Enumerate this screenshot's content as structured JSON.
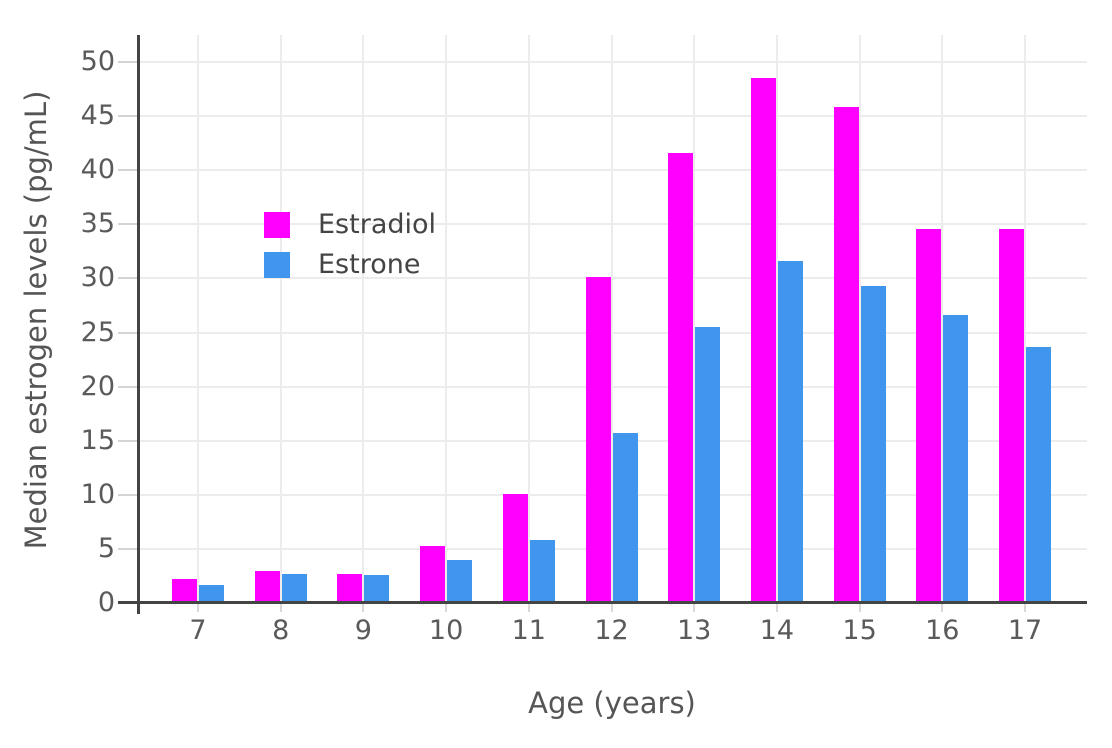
{
  "chart_data": {
    "type": "bar",
    "title": "",
    "xlabel": "Age (years)",
    "ylabel": "Median estrogen levels (pg/mL)",
    "categories": [
      "7",
      "8",
      "9",
      "10",
      "11",
      "12",
      "13",
      "14",
      "15",
      "16",
      "17"
    ],
    "series": [
      {
        "name": "Estradiol",
        "color": "#FF00FF",
        "values": [
          2.2,
          3.0,
          2.7,
          5.3,
          10.1,
          30.1,
          41.6,
          48.5,
          45.8,
          34.6,
          34.6
        ]
      },
      {
        "name": "Estrone",
        "color": "#4095EC",
        "values": [
          1.7,
          2.7,
          2.6,
          4.0,
          5.8,
          15.7,
          25.5,
          31.6,
          29.3,
          26.6,
          23.7
        ]
      }
    ],
    "yticks": [
      0,
      5,
      10,
      15,
      20,
      25,
      30,
      35,
      40,
      45,
      50
    ],
    "ylim": [
      0,
      52.5
    ],
    "grid": true,
    "legend_position": "inside-top-left",
    "bar_mode": "grouped"
  },
  "legend": {
    "items": [
      {
        "label": "Estradiol",
        "color": "#FF00FF"
      },
      {
        "label": "Estrone",
        "color": "#4095EC"
      }
    ]
  },
  "axes": {
    "x_title": "Age (years)",
    "y_title": "Median estrogen levels (pg/mL)"
  },
  "colors": {
    "estradiol": "#FF00FF",
    "estrone": "#4095EC",
    "gridline": "#ececec",
    "axis_line": "#444444",
    "tick_label": "#5a5a5a",
    "axis_title": "#555555",
    "background": "#ffffff"
  }
}
